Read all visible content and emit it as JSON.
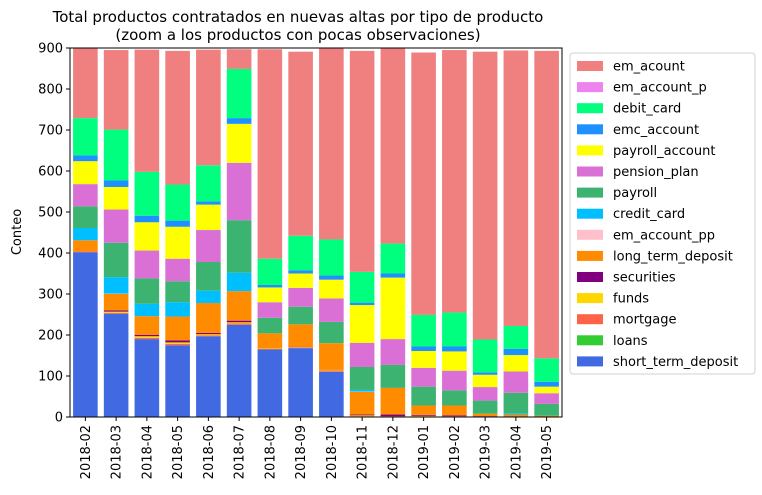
{
  "chart_data": {
    "type": "bar",
    "stacked": true,
    "title": "Total productos contratados en nuevas altas por tipo de producto",
    "subtitle": "(zoom a los productos con pocas observaciones)",
    "xlabel": "",
    "ylabel": "Conteo",
    "ylim": [
      0,
      900
    ],
    "yticks": [
      0,
      100,
      200,
      300,
      400,
      500,
      600,
      700,
      800,
      900
    ],
    "grid": false,
    "legend_position": "right",
    "categories": [
      "2018-02",
      "2018-03",
      "2018-04",
      "2018-05",
      "2018-06",
      "2018-07",
      "2018-08",
      "2018-09",
      "2018-10",
      "2018-11",
      "2018-12",
      "2019-01",
      "2019-02",
      "2019-03",
      "2019-04",
      "2019-05"
    ],
    "series": [
      {
        "name": "short_term_deposit",
        "color": "#4169e1",
        "values": [
          402,
          252,
          190,
          175,
          197,
          225,
          165,
          168,
          110,
          0,
          0,
          0,
          0,
          0,
          0,
          0
        ]
      },
      {
        "name": "loans",
        "color": "#32cd32",
        "values": [
          0,
          0,
          0,
          0,
          0,
          0,
          0,
          0,
          0,
          0,
          0,
          0,
          0,
          0,
          0,
          0
        ]
      },
      {
        "name": "mortgage",
        "color": "#ff6347",
        "values": [
          2,
          2,
          3,
          3,
          2,
          3,
          1,
          2,
          2,
          2,
          2,
          2,
          2,
          0,
          0,
          0
        ]
      },
      {
        "name": "funds",
        "color": "#ffd700",
        "values": [
          0,
          3,
          4,
          4,
          3,
          3,
          1,
          2,
          2,
          2,
          0,
          1,
          0,
          1,
          1,
          0
        ]
      },
      {
        "name": "securities",
        "color": "#800080",
        "values": [
          0,
          3,
          3,
          5,
          3,
          4,
          0,
          1,
          1,
          2,
          4,
          2,
          2,
          1,
          0,
          0
        ]
      },
      {
        "name": "long_term_deposit",
        "color": "#ff8c00",
        "values": [
          27,
          40,
          46,
          58,
          73,
          72,
          37,
          53,
          65,
          55,
          65,
          23,
          24,
          6,
          5,
          3
        ]
      },
      {
        "name": "em_account_pp",
        "color": "#ffc0cb",
        "values": [
          0,
          1,
          0,
          0,
          0,
          0,
          0,
          0,
          0,
          1,
          0,
          0,
          0,
          0,
          0,
          0
        ]
      },
      {
        "name": "credit_card",
        "color": "#00bfff",
        "values": [
          30,
          40,
          30,
          35,
          30,
          45,
          0,
          0,
          0,
          4,
          0,
          0,
          0,
          0,
          3,
          0
        ]
      },
      {
        "name": "payroll",
        "color": "#3cb371",
        "values": [
          53,
          84,
          62,
          51,
          70,
          128,
          38,
          43,
          52,
          56,
          56,
          46,
          37,
          32,
          50,
          29
        ]
      },
      {
        "name": "pension_plan",
        "color": "#da70d6",
        "values": [
          54,
          81,
          68,
          55,
          78,
          140,
          38,
          46,
          57,
          59,
          63,
          46,
          48,
          33,
          52,
          26
        ]
      },
      {
        "name": "payroll_account",
        "color": "#ffff00",
        "values": [
          56,
          55,
          69,
          78,
          62,
          95,
          36,
          35,
          46,
          92,
          150,
          41,
          47,
          30,
          40,
          16
        ]
      },
      {
        "name": "emc_account",
        "color": "#1e90ff",
        "values": [
          14,
          16,
          16,
          15,
          8,
          14,
          6,
          8,
          10,
          6,
          10,
          11,
          12,
          6,
          15,
          12
        ]
      },
      {
        "name": "debit_card",
        "color": "#00ff7f",
        "values": [
          91,
          124,
          107,
          88,
          88,
          120,
          64,
          84,
          88,
          75,
          73,
          77,
          83,
          80,
          56,
          57
        ]
      },
      {
        "name": "em_account_p",
        "color": "#ee82ee",
        "values": [
          0,
          0,
          0,
          0,
          0,
          0,
          0,
          0,
          0,
          0,
          0,
          0,
          0,
          0,
          0,
          0
        ]
      },
      {
        "name": "em_acount",
        "color": "#f08080",
        "values": [
          171,
          194,
          298,
          326,
          282,
          48,
          511,
          449,
          466,
          539,
          477,
          640,
          640,
          702,
          672,
          750
        ]
      }
    ],
    "legend_order": [
      "em_acount",
      "em_account_p",
      "debit_card",
      "emc_account",
      "payroll_account",
      "pension_plan",
      "payroll",
      "credit_card",
      "em_account_pp",
      "long_term_deposit",
      "securities",
      "funds",
      "mortgage",
      "loans",
      "short_term_deposit"
    ]
  }
}
